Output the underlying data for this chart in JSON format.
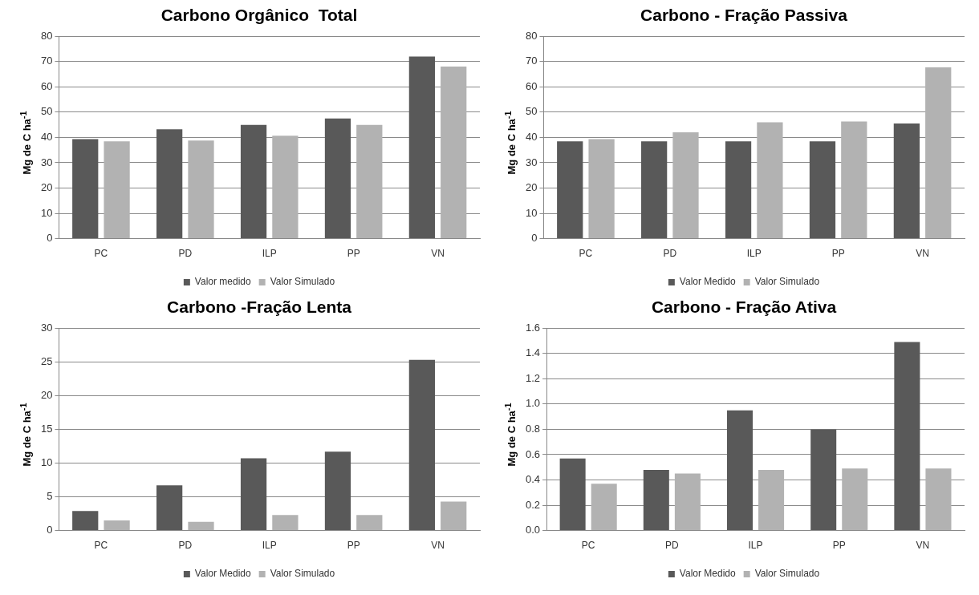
{
  "chart_data": [
    {
      "type": "bar",
      "title": "Carbono Orgânico  Total",
      "ylabel": "Mg de C ha$^{-1}$",
      "categories": [
        "PC",
        "PD",
        "ILP",
        "PP",
        "VN"
      ],
      "series": [
        {
          "name": "Valor medido",
          "color": "#595959",
          "values": [
            39.3,
            43.2,
            45,
            47.5,
            72
          ]
        },
        {
          "name": "Valor Simulado",
          "color": "#b2b2b2",
          "values": [
            38.5,
            38.8,
            40.7,
            45,
            68
          ]
        }
      ],
      "ylim": [
        0,
        80
      ],
      "yticks": [
        0,
        10,
        20,
        30,
        40,
        50,
        60,
        70,
        80
      ],
      "grid": "y",
      "legend": "bottom"
    },
    {
      "type": "bar",
      "title": "Carbono - Fração Passiva",
      "ylabel": "Mg de C ha$^{-1}$",
      "categories": [
        "PC",
        "PD",
        "ILP",
        "PP",
        "VN"
      ],
      "series": [
        {
          "name": "Valor Medido",
          "color": "#595959",
          "values": [
            38.5,
            38.5,
            38.5,
            38.5,
            45.5
          ]
        },
        {
          "name": "Valor Simulado",
          "color": "#b2b2b2",
          "values": [
            39.3,
            42,
            46,
            46.3,
            67.7
          ]
        }
      ],
      "ylim": [
        0,
        80
      ],
      "yticks": [
        0,
        10,
        20,
        30,
        40,
        50,
        60,
        70,
        80
      ],
      "grid": "y",
      "legend": "bottom"
    },
    {
      "type": "bar",
      "title": "Carbono -Fração Lenta",
      "ylabel": "Mg de C ha$^{-1}$",
      "categories": [
        "PC",
        "PD",
        "ILP",
        "PP",
        "VN"
      ],
      "series": [
        {
          "name": "Valor Medido",
          "color": "#595959",
          "values": [
            2.9,
            6.7,
            10.7,
            11.7,
            25.3
          ]
        },
        {
          "name": "Valor Simulado",
          "color": "#b2b2b2",
          "values": [
            1.5,
            1.3,
            2.3,
            2.3,
            4.3
          ]
        }
      ],
      "ylim": [
        0,
        30
      ],
      "yticks": [
        0,
        5,
        10,
        15,
        20,
        25,
        30
      ],
      "grid": "y",
      "legend": "bottom"
    },
    {
      "type": "bar",
      "title": "Carbono - Fração Ativa",
      "ylabel": "Mg de C ha$^{-1}$",
      "categories": [
        "PC",
        "PD",
        "ILP",
        "PP",
        "VN"
      ],
      "series": [
        {
          "name": "Valor Medido",
          "color": "#595959",
          "values": [
            0.57,
            0.48,
            0.95,
            0.8,
            1.49
          ]
        },
        {
          "name": "Valor Simulado",
          "color": "#b2b2b2",
          "values": [
            0.37,
            0.45,
            0.48,
            0.49,
            0.49
          ]
        }
      ],
      "ylim": [
        0,
        1.6
      ],
      "yticks": [
        {
          "value": 0,
          "label": "0.0"
        },
        0.2,
        0.4,
        0.6,
        0.8,
        {
          "value": 1,
          "label": "1.0"
        },
        1.2,
        1.4,
        1.6
      ],
      "grid": "y",
      "legend": "bottom"
    }
  ]
}
